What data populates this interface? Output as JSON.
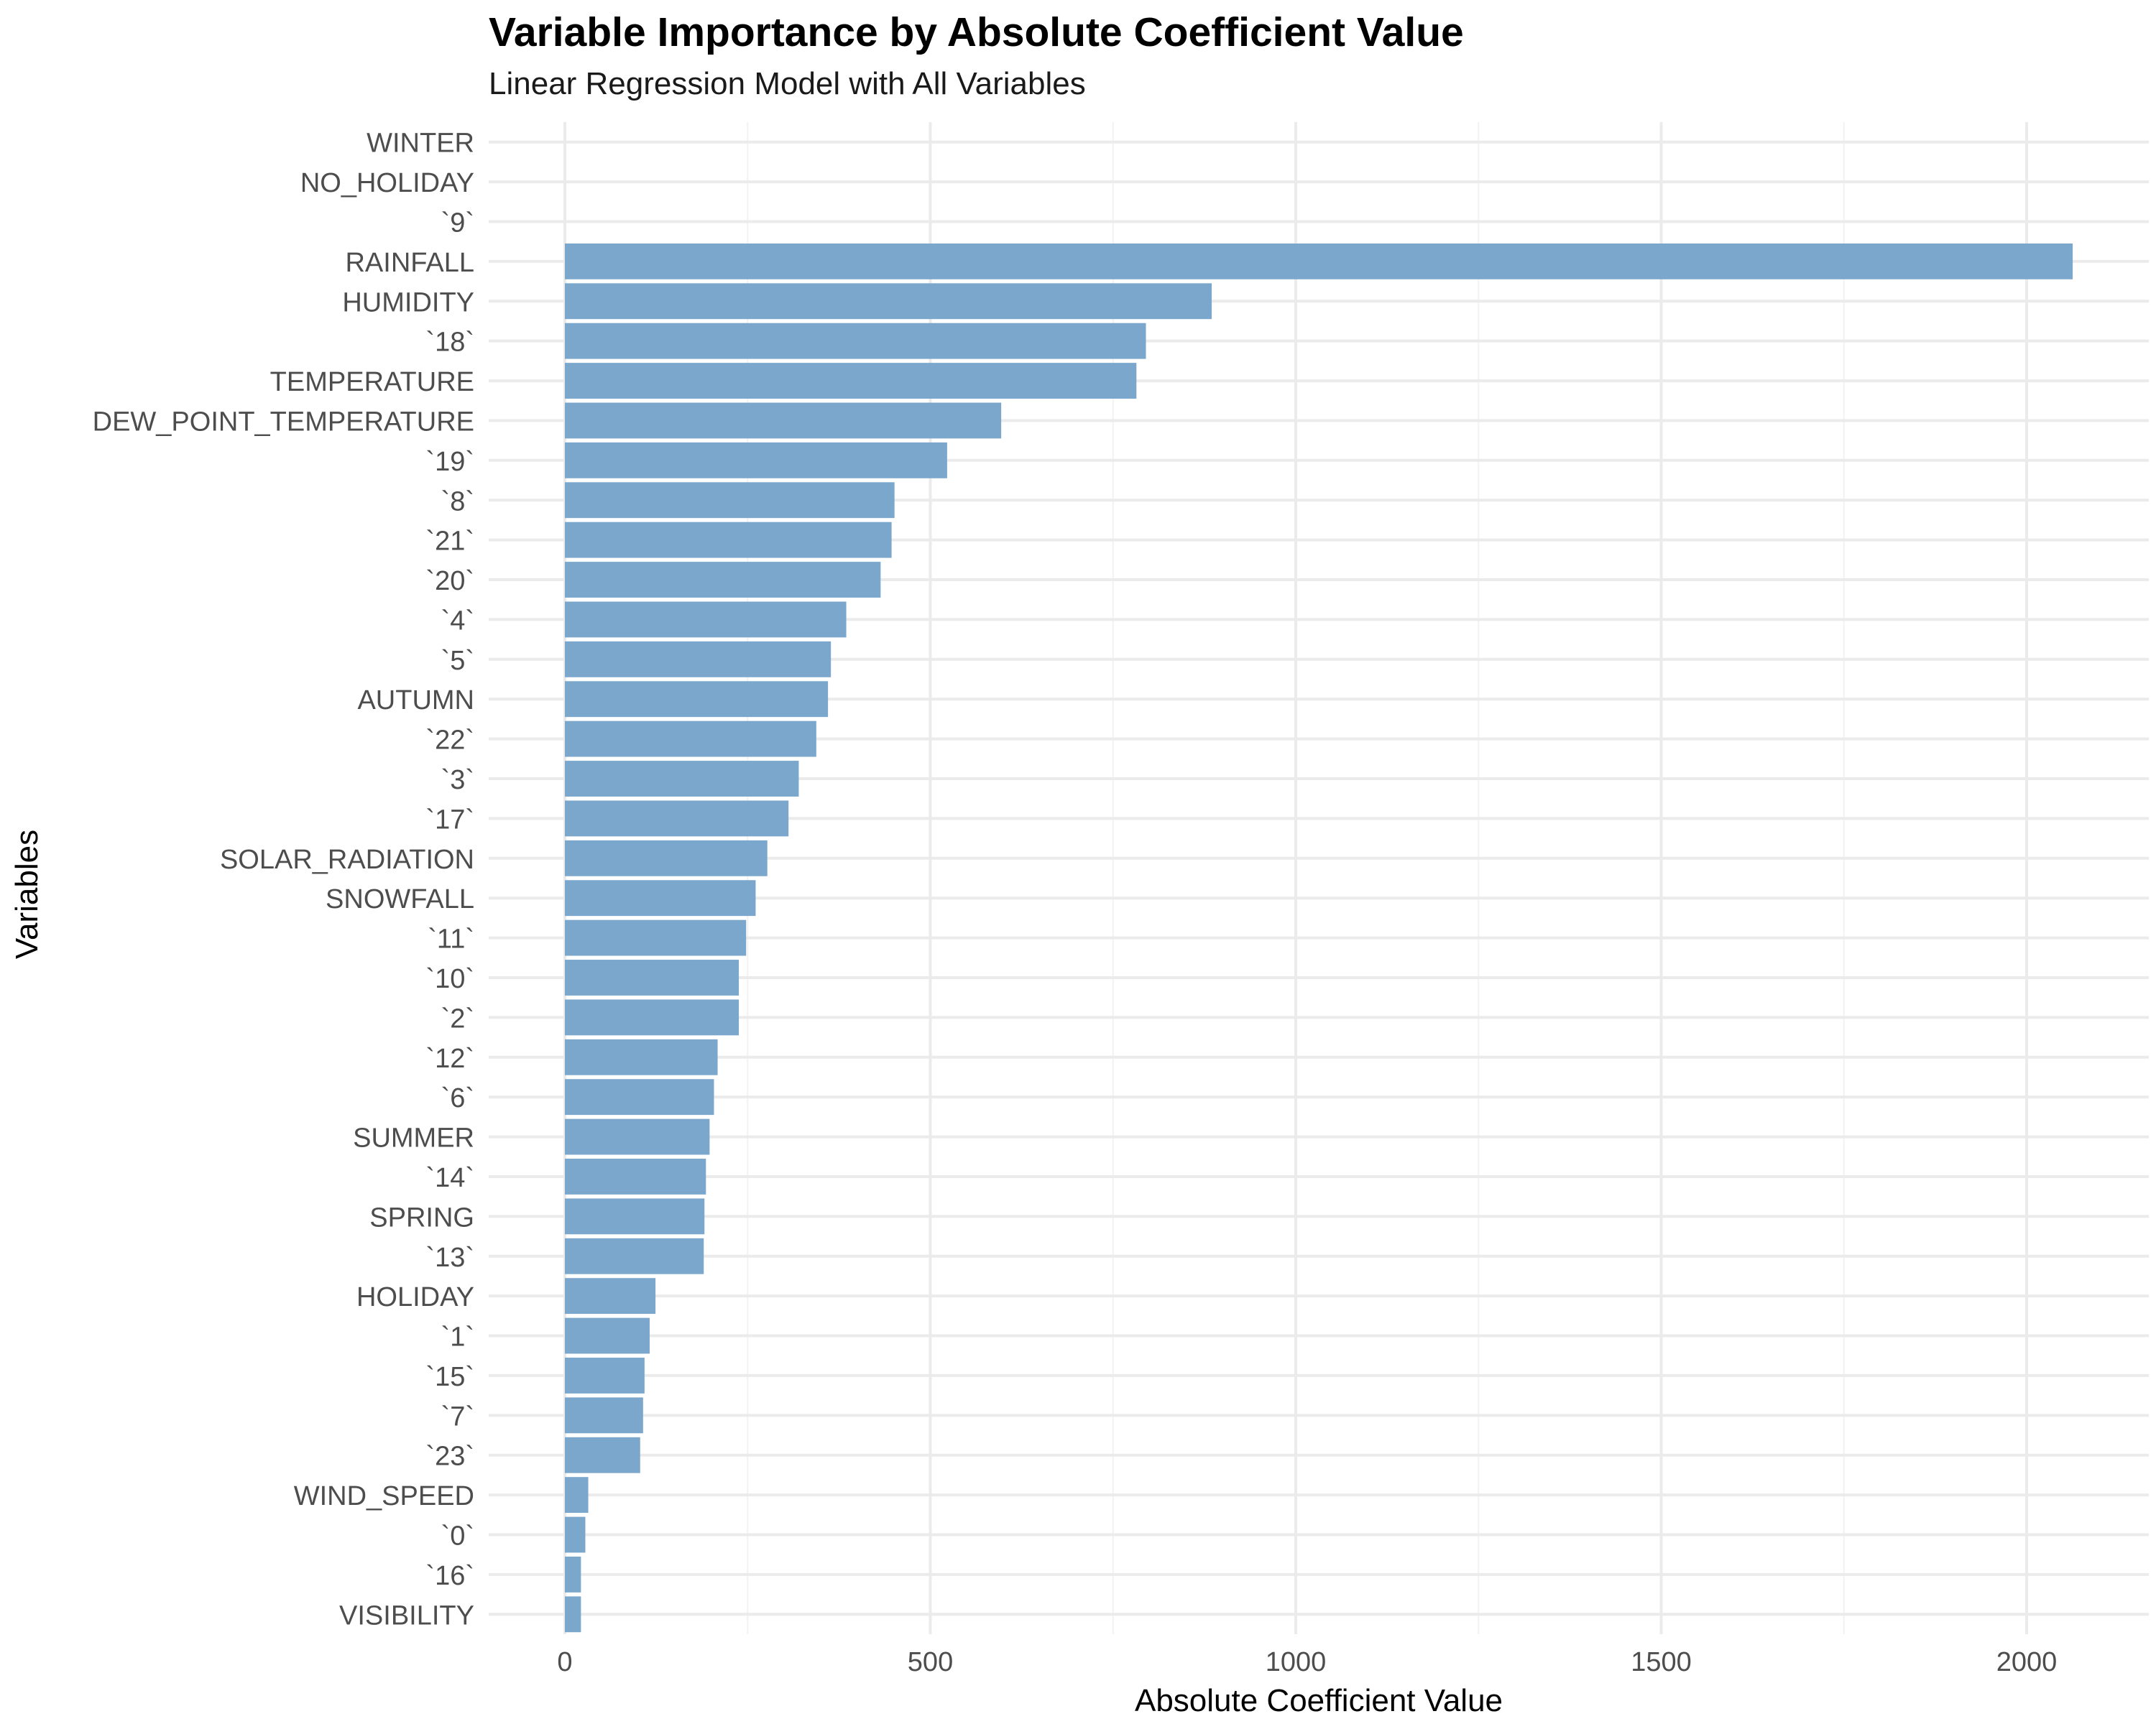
{
  "chart_data": {
    "type": "bar",
    "orientation": "horizontal",
    "title": "Variable Importance by Absolute Coefficient Value",
    "subtitle": "Linear Regression Model with All Variables",
    "xlabel": "Absolute Coefficient Value",
    "ylabel": "Variables",
    "xlim": [
      0,
      2100
    ],
    "x_ticks": [
      "0",
      "500",
      "1000",
      "1500",
      "2000"
    ],
    "grid": true,
    "bar_color": "#7BA7CC",
    "categories": [
      "WINTER",
      "NO_HOLIDAY",
      "`9`",
      "RAINFALL",
      "HUMIDITY",
      "`18`",
      "TEMPERATURE",
      "DEW_POINT_TEMPERATURE",
      "`19`",
      "`8`",
      "`21`",
      "`20`",
      "`4`",
      "`5`",
      "AUTUMN",
      "`22`",
      "`3`",
      "`17`",
      "SOLAR_RADIATION",
      "SNOWFALL",
      "`11`",
      "`10`",
      "`2`",
      "`12`",
      "`6`",
      "SUMMER",
      "`14`",
      "SPRING",
      "`13`",
      "HOLIDAY",
      "`1`",
      "`15`",
      "`7`",
      "`23`",
      "WIND_SPEED",
      "`0`",
      "`16`",
      "VISIBILITY"
    ],
    "values": [
      0,
      0,
      0,
      2063,
      885,
      795,
      782,
      597,
      523,
      451,
      447,
      432,
      385,
      364,
      360,
      344,
      320,
      306,
      277,
      261,
      248,
      238,
      238,
      209,
      204,
      198,
      193,
      191,
      190,
      124,
      116,
      109,
      107,
      103,
      32,
      28,
      22,
      22
    ]
  }
}
